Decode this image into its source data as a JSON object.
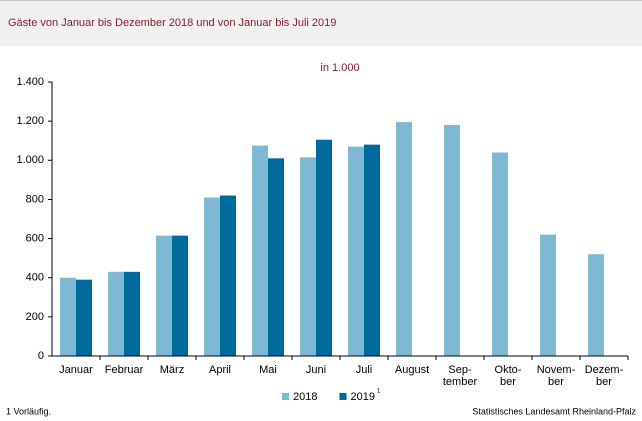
{
  "chart_data": {
    "type": "bar",
    "title": "Gäste von Januar bis Dezember 2018 und von Januar bis Juli 2019",
    "subtitle": "in 1.000",
    "categories": [
      "Januar",
      "Februar",
      "März",
      "April",
      "Mai",
      "Juni",
      "Juli",
      "August",
      "Sep-\ntember",
      "Okto-\nber",
      "Novem-\nber",
      "Dezem-\nber"
    ],
    "series": [
      {
        "name": "2018",
        "color": "#7fb8d4",
        "values": [
          400,
          430,
          615,
          810,
          1075,
          1015,
          1070,
          1195,
          1180,
          1040,
          620,
          520
        ]
      },
      {
        "name": "2019",
        "footnote_marker": "1",
        "color": "#006a9e",
        "values": [
          390,
          430,
          615,
          820,
          1010,
          1105,
          1080,
          null,
          null,
          null,
          null,
          null
        ]
      }
    ],
    "ylim": [
      0,
      1400
    ],
    "yticks": [
      0,
      200,
      400,
      600,
      800,
      {
        "value": 1000,
        "label": "1.000"
      },
      {
        "value": 1200,
        "label": "1.200"
      },
      {
        "value": 1400,
        "label": "1.400"
      }
    ],
    "grid": false,
    "legend": "bottom",
    "footnote": "1 Vorläufig.",
    "source": "Statistisches Landesamt Rheinland-Pfalz"
  }
}
